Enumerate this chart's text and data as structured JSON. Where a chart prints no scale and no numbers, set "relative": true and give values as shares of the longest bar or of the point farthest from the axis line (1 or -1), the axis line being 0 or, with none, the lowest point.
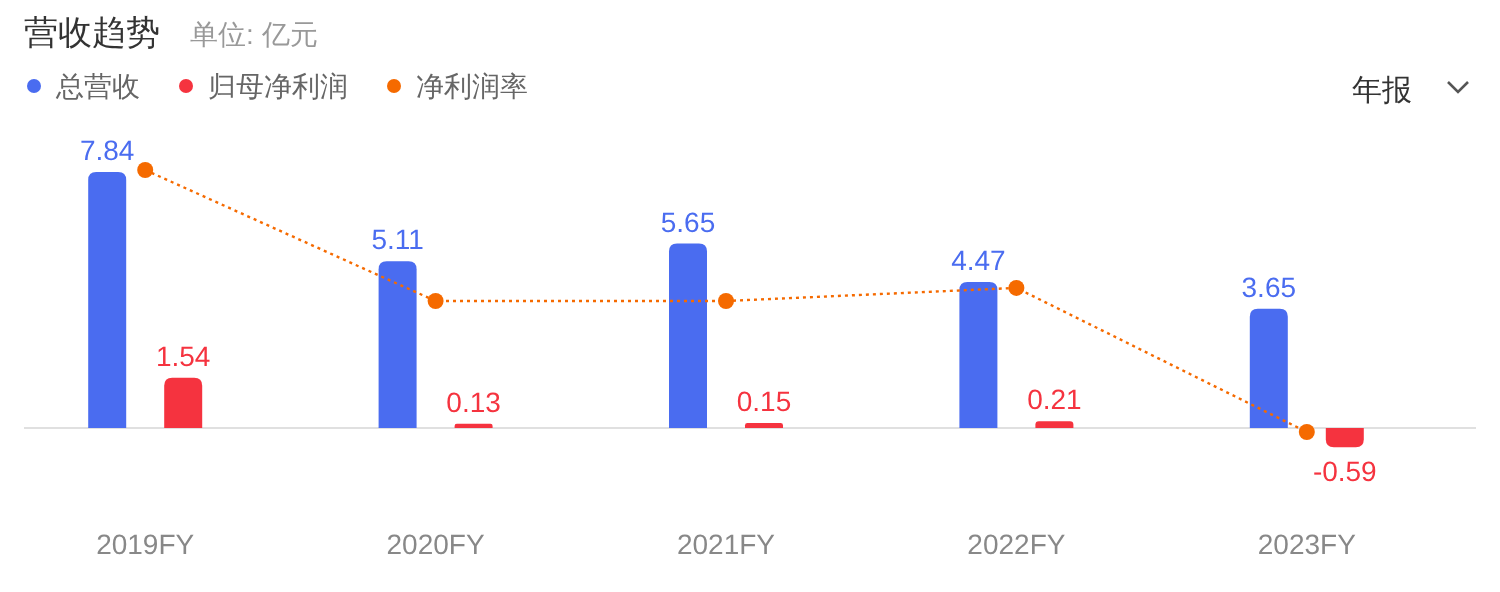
{
  "chart_data": [
    {
      "type": "bar",
      "title": "营收趋势",
      "subtitle": "单位: 亿元",
      "annotations": [
        "年报"
      ],
      "categories": [
        "2019FY",
        "2020FY",
        "2021FY",
        "2022FY",
        "2023FY"
      ],
      "legend": "top left",
      "series": [
        {
          "name": "总营收",
          "color": "#4a6cf0",
          "values": [
            7.84,
            5.11,
            5.65,
            4.47,
            3.65
          ],
          "value_labels": [
            "7.84",
            "5.11",
            "5.65",
            "4.47",
            "3.65"
          ]
        },
        {
          "name": "归母净利润",
          "color": "#f5333f",
          "values": [
            1.54,
            0.13,
            0.15,
            0.21,
            -0.59
          ],
          "value_labels": [
            "1.54",
            "0.13",
            "0.15",
            "0.21",
            "-0.59"
          ]
        }
      ]
    },
    {
      "type": "line",
      "relative": true,
      "tick_labels": false,
      "legend": "top left",
      "marker": "circle",
      "line_style": "dotted",
      "categories": [
        null,
        null,
        null,
        null,
        null
      ],
      "series": [
        {
          "name": "净利润率",
          "color": "#f56a00",
          "values": [
            1,
            0.5,
            0.5,
            0.55,
            0
          ]
        }
      ]
    }
  ]
}
